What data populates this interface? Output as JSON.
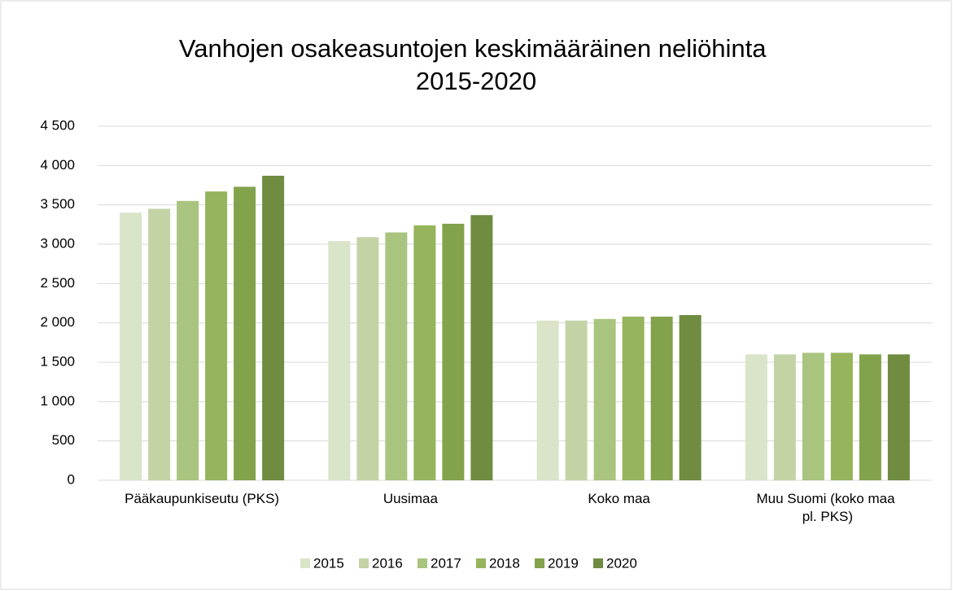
{
  "chart_data": {
    "type": "bar",
    "title": "Vanhojen osakeasuntojen keskimääräinen neliöhinta 2015-2020",
    "categories": [
      "Pääkaupunkiseutu (PKS)",
      "Uusimaa",
      "Koko maa",
      "Muu Suomi (koko maa pl. PKS)"
    ],
    "series": [
      {
        "name": "2015",
        "color": "#d9e4c9",
        "values": [
          3400,
          3040,
          2030,
          1600
        ]
      },
      {
        "name": "2016",
        "color": "#c3d3a6",
        "values": [
          3450,
          3090,
          2030,
          1600
        ]
      },
      {
        "name": "2017",
        "color": "#a9c47f",
        "values": [
          3550,
          3150,
          2050,
          1620
        ]
      },
      {
        "name": "2018",
        "color": "#95b45b",
        "values": [
          3670,
          3240,
          2080,
          1620
        ]
      },
      {
        "name": "2019",
        "color": "#82a24c",
        "values": [
          3730,
          3260,
          2080,
          1600
        ]
      },
      {
        "name": "2020",
        "color": "#6f8c41",
        "values": [
          3870,
          3370,
          2100,
          1600
        ]
      }
    ],
    "ylim": [
      0,
      4500
    ],
    "yticks": [
      0,
      500,
      {
        "value": 1000,
        "label": "1 000"
      },
      {
        "value": 1500,
        "label": "1 500"
      },
      {
        "value": 2000,
        "label": "2 000"
      },
      {
        "value": 2500,
        "label": "2 500"
      },
      {
        "value": 3000,
        "label": "3 000"
      },
      {
        "value": 3500,
        "label": "3 500"
      },
      {
        "value": 4000,
        "label": "4 000"
      },
      {
        "value": 4500,
        "label": "4 500"
      }
    ],
    "grid": true,
    "legend": "bottom"
  }
}
